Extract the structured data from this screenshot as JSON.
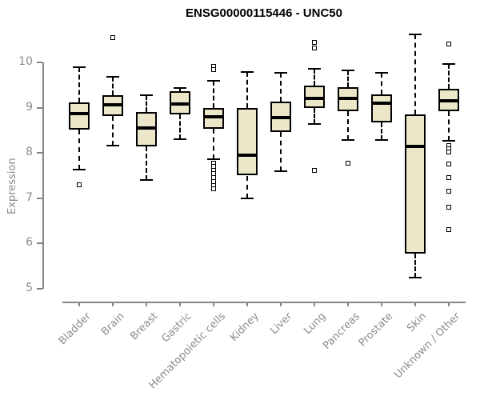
{
  "chart_data": {
    "type": "boxplot",
    "title": "ENSG00000115446 - UNC50",
    "xlabel": "",
    "ylabel": "Expression",
    "ylim": [
      5,
      10
    ],
    "yticks": [
      5,
      6,
      7,
      8,
      9,
      10
    ],
    "grid": false,
    "legend": false,
    "colors": {
      "box_fill": "#EDE7C9",
      "box_border": "#000000",
      "median": "#000000",
      "axis": "#868686",
      "tick_label": "#8A8A8A",
      "title": "#000000",
      "background": "#FFFFFF"
    },
    "categories": [
      "Bladder",
      "Brain",
      "Breast",
      "Gastric",
      "Hematopoietic cells",
      "Kidney",
      "Liver",
      "Lung",
      "Pancreas",
      "Prostate",
      "Skin",
      "Unknown / Other"
    ],
    "series": [
      {
        "name": "Bladder",
        "whisker_low": 7.63,
        "q1": 8.52,
        "median": 8.87,
        "q3": 9.11,
        "whisker_high": 9.9,
        "outliers": [
          7.3
        ]
      },
      {
        "name": "Brain",
        "whisker_low": 8.17,
        "q1": 8.82,
        "median": 9.06,
        "q3": 9.27,
        "whisker_high": 9.68,
        "outliers": [
          10.55
        ]
      },
      {
        "name": "Breast",
        "whisker_low": 7.4,
        "q1": 8.15,
        "median": 8.55,
        "q3": 8.9,
        "whisker_high": 9.28,
        "outliers": []
      },
      {
        "name": "Gastric",
        "whisker_low": 8.3,
        "q1": 8.85,
        "median": 9.08,
        "q3": 9.36,
        "whisker_high": 9.43,
        "outliers": []
      },
      {
        "name": "Hematopoietic cells",
        "whisker_low": 7.87,
        "q1": 8.54,
        "median": 8.79,
        "q3": 9.0,
        "whisker_high": 9.6,
        "outliers": [
          9.92,
          9.84,
          7.78,
          7.7,
          7.62,
          7.54,
          7.46,
          7.37,
          7.28,
          7.2
        ]
      },
      {
        "name": "Kidney",
        "whisker_low": 7.0,
        "q1": 7.5,
        "median": 7.95,
        "q3": 9.0,
        "whisker_high": 9.78,
        "outliers": []
      },
      {
        "name": "Liver",
        "whisker_low": 7.6,
        "q1": 8.46,
        "median": 8.78,
        "q3": 9.14,
        "whisker_high": 9.77,
        "outliers": []
      },
      {
        "name": "Lung",
        "whisker_low": 8.64,
        "q1": 8.99,
        "median": 9.2,
        "q3": 9.49,
        "whisker_high": 9.85,
        "outliers": [
          10.45,
          10.32,
          7.62
        ]
      },
      {
        "name": "Pancreas",
        "whisker_low": 8.28,
        "q1": 8.93,
        "median": 9.21,
        "q3": 9.46,
        "whisker_high": 9.82,
        "outliers": [
          7.77
        ]
      },
      {
        "name": "Prostate",
        "whisker_low": 8.28,
        "q1": 8.68,
        "median": 9.1,
        "q3": 9.3,
        "whisker_high": 9.77,
        "outliers": []
      },
      {
        "name": "Skin",
        "whisker_low": 5.25,
        "q1": 5.77,
        "median": 8.15,
        "q3": 8.86,
        "whisker_high": 10.62,
        "outliers": []
      },
      {
        "name": "Unknown / Other",
        "whisker_low": 8.27,
        "q1": 8.93,
        "median": 9.15,
        "q3": 9.42,
        "whisker_high": 9.97,
        "outliers": [
          10.4,
          8.16,
          8.09,
          8.02,
          7.75,
          7.46,
          7.15,
          6.8,
          6.3
        ]
      }
    ]
  }
}
